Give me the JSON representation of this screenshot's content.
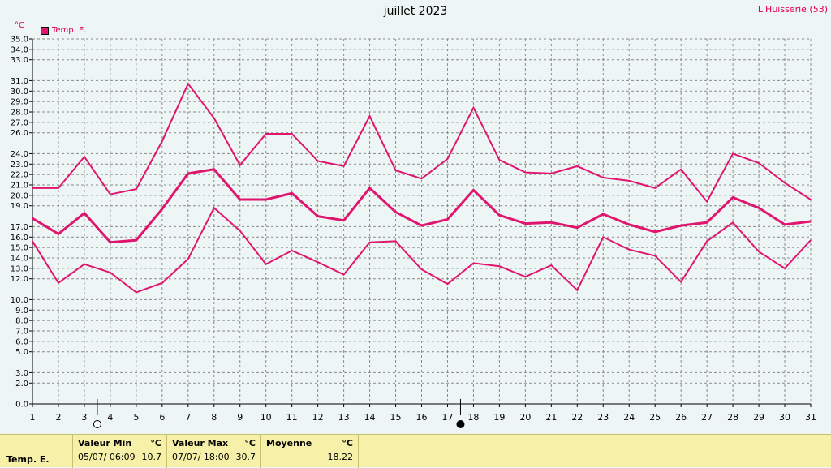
{
  "chart_data": {
    "type": "line",
    "title": "juillet 2023",
    "station": "L'Huisserie (53)",
    "unit": "°C",
    "legend": "Temp. E.",
    "colors": {
      "series": "#e0156e",
      "grid": "#8a8a8a",
      "axis": "#000000"
    },
    "x": [
      1,
      2,
      3,
      4,
      5,
      6,
      7,
      8,
      9,
      10,
      11,
      12,
      13,
      14,
      15,
      16,
      17,
      18,
      19,
      20,
      21,
      22,
      23,
      24,
      25,
      26,
      27,
      28,
      29,
      30,
      31
    ],
    "ylim": [
      0,
      35
    ],
    "ytick_labels": [
      "0.0",
      "2.0",
      "3.0",
      "5.0",
      "6.0",
      "7.0",
      "8.0",
      "9.0",
      "10.0",
      "12.0",
      "13.0",
      "14.0",
      "15.0",
      "16.0",
      "17.0",
      "19.0",
      "20.0",
      "21.0",
      "22.0",
      "23.0",
      "24.0",
      "26.0",
      "27.0",
      "28.0",
      "29.0",
      "30.0",
      "31.0",
      "33.0",
      "34.0",
      "35.0"
    ],
    "moon_markers": [
      {
        "day": 3.5,
        "phase": "full"
      },
      {
        "day": 17.5,
        "phase": "new"
      }
    ],
    "series": [
      {
        "kind": "max",
        "values": [
          20.7,
          20.7,
          23.7,
          20.1,
          20.6,
          25.2,
          30.7,
          27.4,
          22.9,
          25.9,
          25.9,
          23.3,
          22.8,
          27.6,
          22.4,
          21.6,
          23.5,
          28.4,
          23.4,
          22.2,
          22.1,
          22.8,
          21.7,
          21.4,
          20.7,
          22.5,
          19.4,
          24.0,
          23.1,
          21.2,
          19.6
        ]
      },
      {
        "kind": "mean",
        "values": [
          17.8,
          16.3,
          18.3,
          15.5,
          15.7,
          18.7,
          22.1,
          22.5,
          19.6,
          19.6,
          20.2,
          18.0,
          17.6,
          20.7,
          18.4,
          17.1,
          17.7,
          20.5,
          18.1,
          17.3,
          17.4,
          16.9,
          18.2,
          17.2,
          16.5,
          17.1,
          17.4,
          19.8,
          18.8,
          17.2,
          17.5
        ]
      },
      {
        "kind": "min",
        "values": [
          15.6,
          11.6,
          13.4,
          12.6,
          10.7,
          11.6,
          13.9,
          18.8,
          16.6,
          13.4,
          14.7,
          13.6,
          12.4,
          15.5,
          15.6,
          12.9,
          11.5,
          13.5,
          13.2,
          12.2,
          13.3,
          10.9,
          16.0,
          14.8,
          14.2,
          11.7,
          15.6,
          17.4,
          14.6,
          13.0,
          15.7
        ]
      }
    ]
  },
  "footer": {
    "sensor": "Temp. E.",
    "min_header": "Valeur Min",
    "min_unit": "°C",
    "min_date": "05/07/  06:09",
    "min_value": "10.7",
    "max_header": "Valeur Max",
    "max_unit": "°C",
    "max_date": "07/07/  18:00",
    "max_value": "30.7",
    "mean_header": "Moyenne",
    "mean_unit": "°C",
    "mean_value": "18.22"
  }
}
